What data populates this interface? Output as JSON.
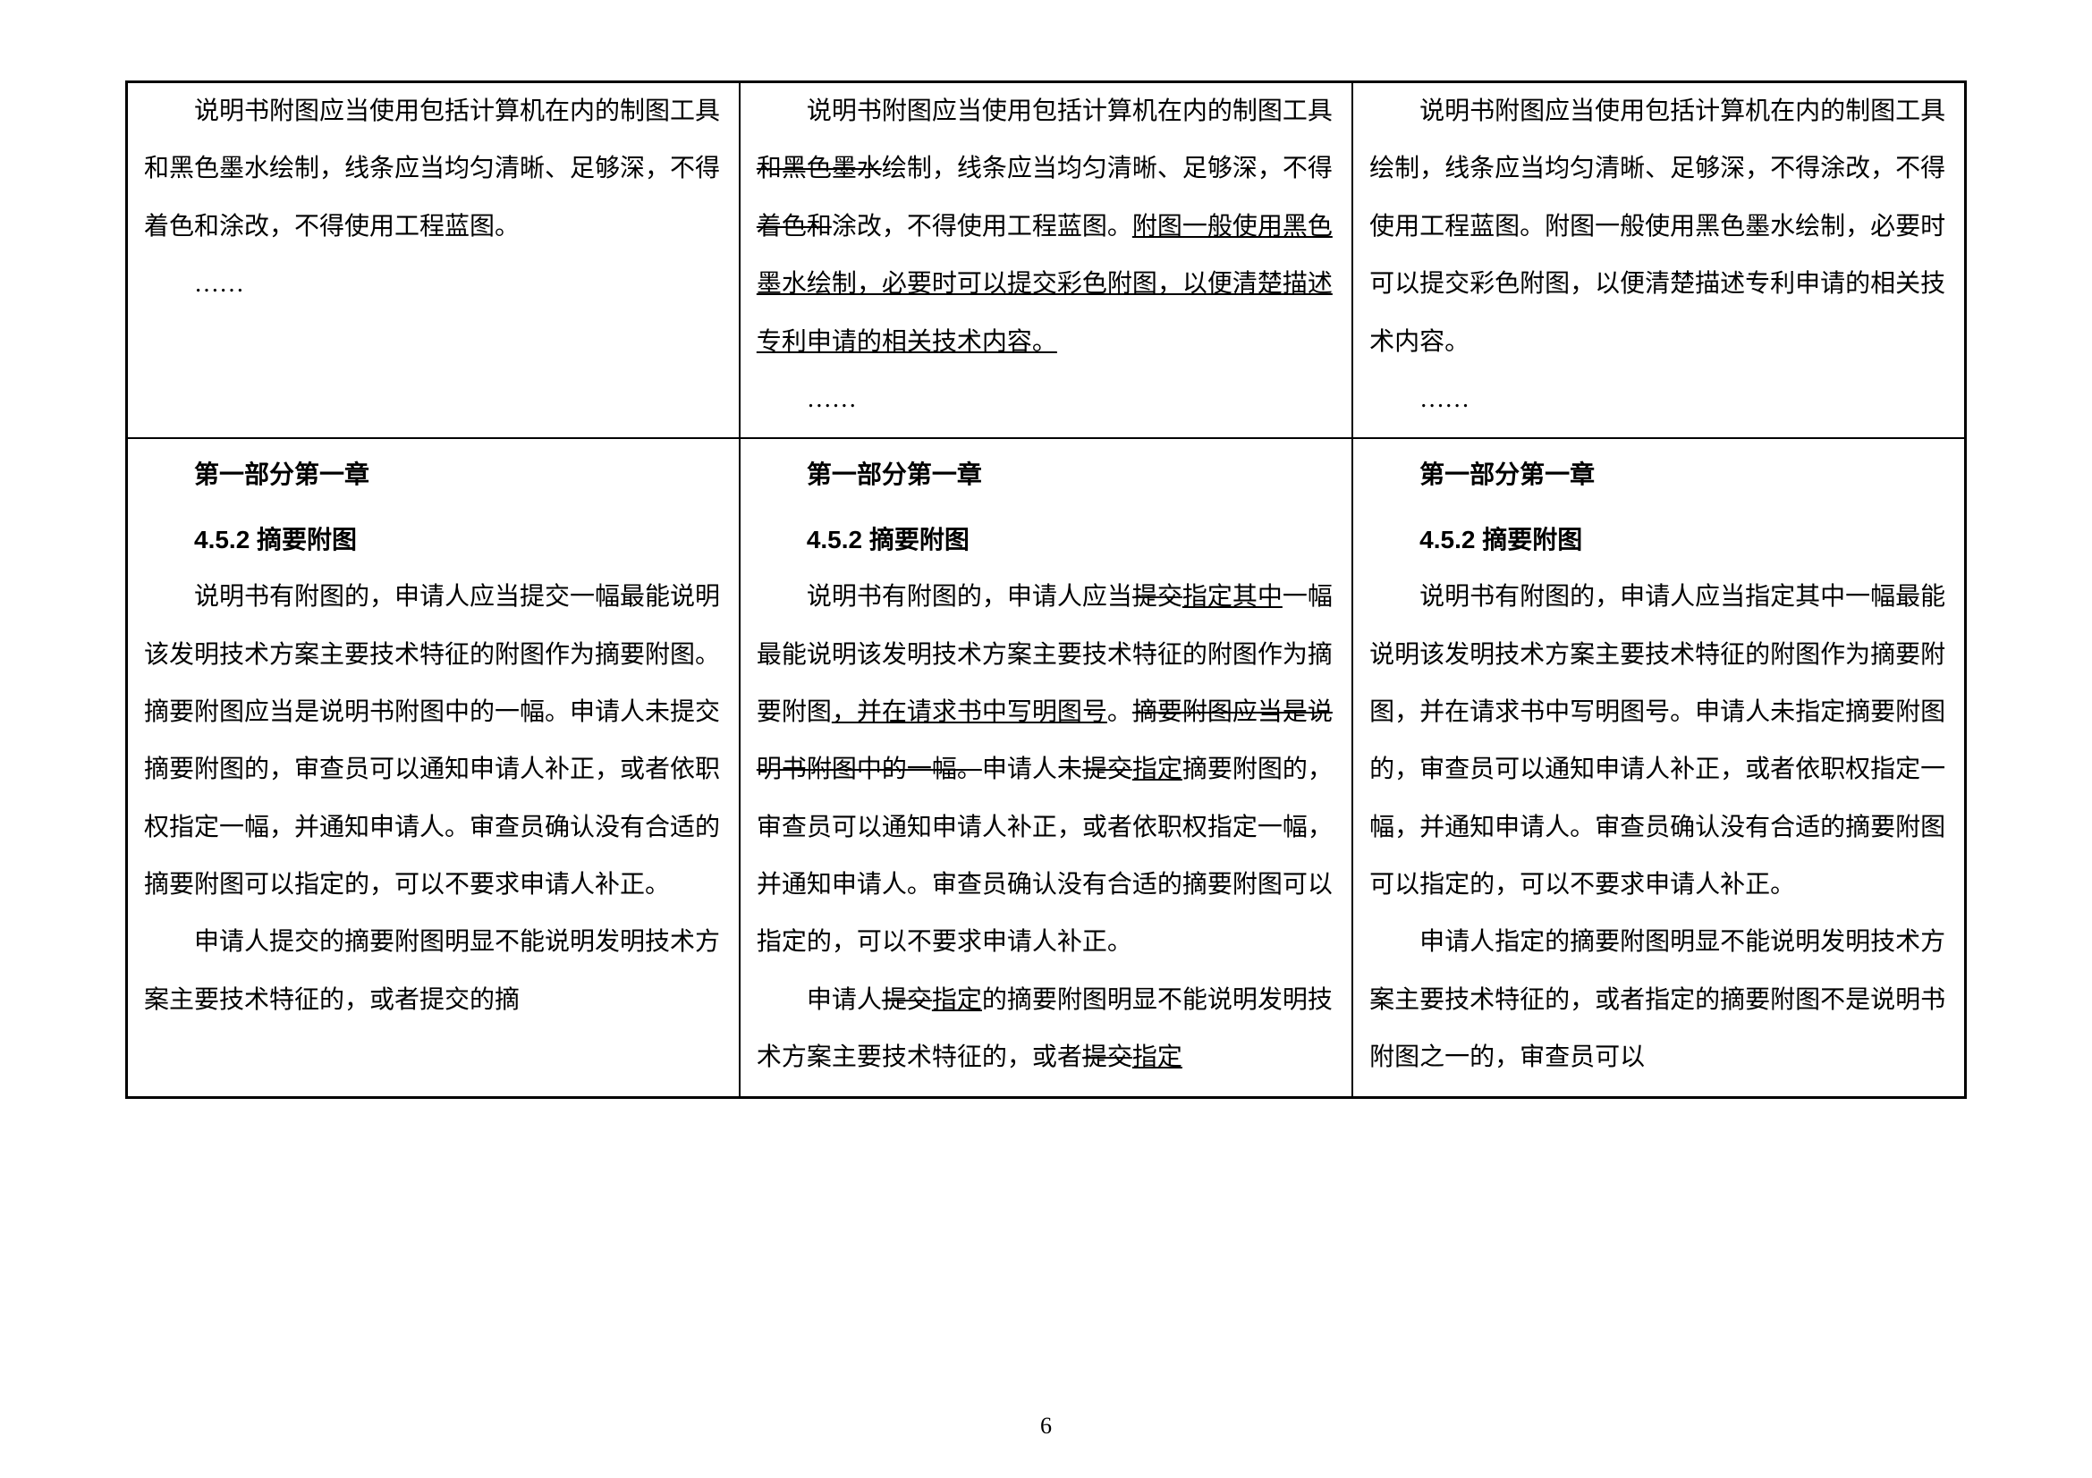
{
  "page_number": "6",
  "row1": {
    "col1": {
      "p1": "说明书附图应当使用包括计算机在内的制图工具和黑色墨水绘制，线条应当均匀清晰、足够深，不得着色和涂改，不得使用工程蓝图。",
      "ellipsis": "……"
    },
    "col2": {
      "p1_pre": "说明书附图应当使用包括计算机在内的制图工具",
      "p1_strike1": "和黑色墨水",
      "p1_mid1": "绘制，线条应当均匀清晰、足够深，不得",
      "p1_strike2": "着色和",
      "p1_mid2": "涂改，不得使用工程蓝图。",
      "p1_under": "附图一般使用黑色墨水绘制，必要时可以提交彩色附图，以便清楚描述专利申请的相关技术内容。",
      "ellipsis": "……"
    },
    "col3": {
      "p1": "说明书附图应当使用包括计算机在内的制图工具绘制，线条应当均匀清晰、足够深，不得涂改，不得使用工程蓝图。附图一般使用黑色墨水绘制，必要时可以提交彩色附图，以便清楚描述专利申请的相关技术内容。",
      "ellipsis": "……"
    }
  },
  "row2": {
    "section": "第一部分第一章",
    "subsection": "4.5.2 摘要附图",
    "col1": {
      "p1": "说明书有附图的，申请人应当提交一幅最能说明该发明技术方案主要技术特征的附图作为摘要附图。摘要附图应当是说明书附图中的一幅。申请人未提交摘要附图的，审查员可以通知申请人补正，或者依职权指定一幅，并通知申请人。审查员确认没有合适的摘要附图可以指定的，可以不要求申请人补正。",
      "p2": "申请人提交的摘要附图明显不能说明发明技术方案主要技术特征的，或者提交的摘"
    },
    "col2": {
      "p1_pre": "说明书有附图的，申请人应当",
      "p1_strike_tijiao": "提交",
      "p1_under1": "指定其中",
      "p1_mid1": "一幅最能说明该发明技术方案主要技术特征的附图作为摘要附图",
      "p1_under2": "，并在请求书中写明图号",
      "p1_mid_period": "。",
      "p1_strike_long": "摘要附图应当是说明书附图中的一幅。",
      "p1_mid2": "申请人未",
      "p1_strike_tijiao2": "提交",
      "p1_under3": "指定",
      "p1_mid3": "摘要附图的，审查员可以通知申请人补正，或者依职权指定一幅，并通知申请人。审查员确认没有合适的摘要附图可以指定的，可以不要求申请人补正。",
      "p2_pre": "申请人",
      "p2_strike1": "提交",
      "p2_under1": "指定",
      "p2_mid1": "的摘要附图明显不能说明发明技术方案主要技术特征的，或者",
      "p2_strike2": "提交",
      "p2_under2": "指定"
    },
    "col3": {
      "p1": "说明书有附图的，申请人应当指定其中一幅最能说明该发明技术方案主要技术特征的附图作为摘要附图，并在请求书中写明图号。申请人未指定摘要附图的，审查员可以通知申请人补正，或者依职权指定一幅，并通知申请人。审查员确认没有合适的摘要附图可以指定的，可以不要求申请人补正。",
      "p2": "申请人指定的摘要附图明显不能说明发明技术方案主要技术特征的，或者指定的摘要附图不是说明书附图之一的，审查员可以"
    }
  }
}
